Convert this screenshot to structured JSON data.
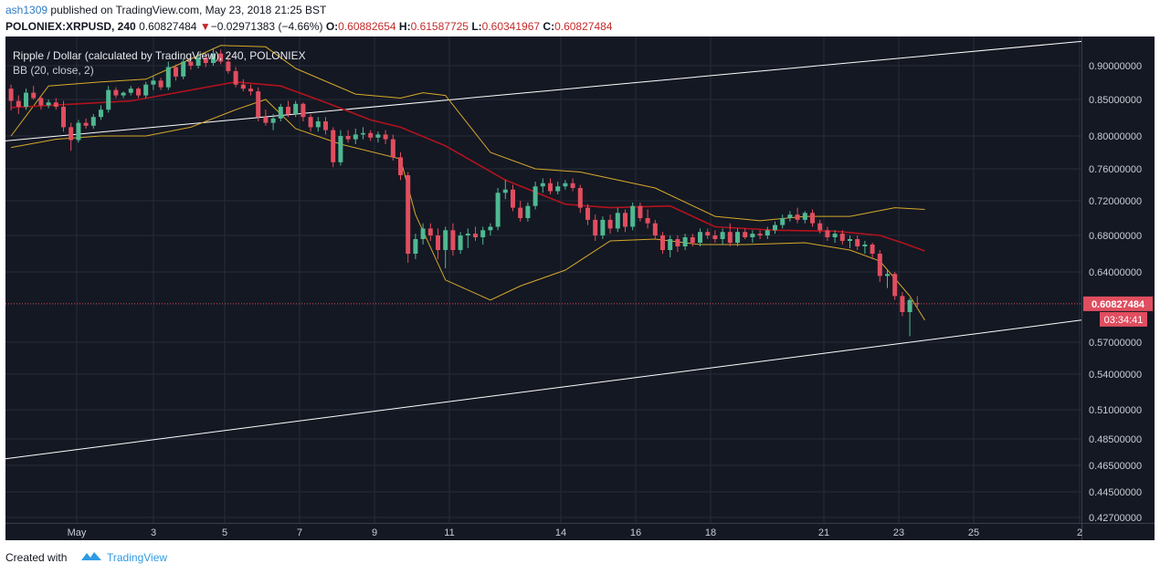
{
  "header": {
    "username": "ash1309",
    "published_text": "published on TradingView.com, May 23, 2018 21:25 BST",
    "symbol": "POLONIEX:XRPUSD, 240",
    "last": "0.60827484",
    "change_arrow": "▼",
    "change": "−0.02971383 (−4.66%)",
    "o_label": "O:",
    "o_value": "0.60882654",
    "h_label": "H:",
    "h_value": "0.61587725",
    "l_label": "L:",
    "l_value": "0.60341967",
    "c_label": "C:",
    "c_value": "0.60827484"
  },
  "legend": {
    "title": "Ripple / Dollar (calculated by TradingView), 240, POLONIEX",
    "indicator": "BB (20, close, 2)"
  },
  "footer": {
    "created_with": "Created with",
    "brand": "TradingView"
  },
  "colors": {
    "background": "#141823",
    "up": "#4fb892",
    "down": "#e04e5f",
    "basis": "#b1131d",
    "bands": "#d6a92a",
    "trendline": "#ffffff",
    "price_line": "#e04e5f"
  },
  "chart_data": {
    "type": "candlestick",
    "x_tick_labels": [
      "May",
      "3",
      "5",
      "7",
      "9",
      "11",
      "14",
      "16",
      "18",
      "21",
      "23",
      "25",
      "2"
    ],
    "y_tick_labels": [
      "0.90000000",
      "0.85000000",
      "0.80000000",
      "0.76000000",
      "0.72000000",
      "0.68000000",
      "0.64000000",
      "0.57000000",
      "0.54000000",
      "0.51000000",
      "0.48500000",
      "0.46500000",
      "0.44500000",
      "0.42700000"
    ],
    "price_label": "0.60827484",
    "countdown_label": "03:34:41",
    "last_price": 0.60827484,
    "candles": [
      {
        "o": 0.866,
        "h": 0.872,
        "l": 0.835,
        "c": 0.848
      },
      {
        "o": 0.848,
        "h": 0.856,
        "l": 0.83,
        "c": 0.84
      },
      {
        "o": 0.84,
        "h": 0.866,
        "l": 0.836,
        "c": 0.86
      },
      {
        "o": 0.86,
        "h": 0.87,
        "l": 0.85,
        "c": 0.852
      },
      {
        "o": 0.852,
        "h": 0.855,
        "l": 0.836,
        "c": 0.842
      },
      {
        "o": 0.842,
        "h": 0.85,
        "l": 0.838,
        "c": 0.846
      },
      {
        "o": 0.846,
        "h": 0.852,
        "l": 0.836,
        "c": 0.84
      },
      {
        "o": 0.84,
        "h": 0.848,
        "l": 0.806,
        "c": 0.812
      },
      {
        "o": 0.812,
        "h": 0.818,
        "l": 0.782,
        "c": 0.795
      },
      {
        "o": 0.795,
        "h": 0.822,
        "l": 0.792,
        "c": 0.818
      },
      {
        "o": 0.818,
        "h": 0.824,
        "l": 0.81,
        "c": 0.814
      },
      {
        "o": 0.814,
        "h": 0.83,
        "l": 0.81,
        "c": 0.826
      },
      {
        "o": 0.826,
        "h": 0.842,
        "l": 0.822,
        "c": 0.836
      },
      {
        "o": 0.836,
        "h": 0.87,
        "l": 0.832,
        "c": 0.864
      },
      {
        "o": 0.864,
        "h": 0.868,
        "l": 0.852,
        "c": 0.856
      },
      {
        "o": 0.856,
        "h": 0.862,
        "l": 0.852,
        "c": 0.86
      },
      {
        "o": 0.86,
        "h": 0.87,
        "l": 0.856,
        "c": 0.866
      },
      {
        "o": 0.866,
        "h": 0.868,
        "l": 0.852,
        "c": 0.856
      },
      {
        "o": 0.856,
        "h": 0.876,
        "l": 0.852,
        "c": 0.872
      },
      {
        "o": 0.872,
        "h": 0.884,
        "l": 0.864,
        "c": 0.878
      },
      {
        "o": 0.878,
        "h": 0.882,
        "l": 0.864,
        "c": 0.868
      },
      {
        "o": 0.868,
        "h": 0.906,
        "l": 0.864,
        "c": 0.898
      },
      {
        "o": 0.898,
        "h": 0.902,
        "l": 0.878,
        "c": 0.884
      },
      {
        "o": 0.884,
        "h": 0.912,
        "l": 0.88,
        "c": 0.906
      },
      {
        "o": 0.906,
        "h": 0.914,
        "l": 0.894,
        "c": 0.9
      },
      {
        "o": 0.9,
        "h": 0.918,
        "l": 0.896,
        "c": 0.912
      },
      {
        "o": 0.912,
        "h": 0.918,
        "l": 0.898,
        "c": 0.904
      },
      {
        "o": 0.904,
        "h": 0.926,
        "l": 0.9,
        "c": 0.918
      },
      {
        "o": 0.918,
        "h": 0.924,
        "l": 0.902,
        "c": 0.906
      },
      {
        "o": 0.906,
        "h": 0.916,
        "l": 0.888,
        "c": 0.892
      },
      {
        "o": 0.892,
        "h": 0.898,
        "l": 0.868,
        "c": 0.872
      },
      {
        "o": 0.872,
        "h": 0.88,
        "l": 0.862,
        "c": 0.866
      },
      {
        "o": 0.866,
        "h": 0.872,
        "l": 0.856,
        "c": 0.862
      },
      {
        "o": 0.862,
        "h": 0.868,
        "l": 0.82,
        "c": 0.826
      },
      {
        "o": 0.826,
        "h": 0.836,
        "l": 0.814,
        "c": 0.818
      },
      {
        "o": 0.818,
        "h": 0.83,
        "l": 0.808,
        "c": 0.824
      },
      {
        "o": 0.824,
        "h": 0.844,
        "l": 0.82,
        "c": 0.84
      },
      {
        "o": 0.84,
        "h": 0.848,
        "l": 0.826,
        "c": 0.83
      },
      {
        "o": 0.83,
        "h": 0.848,
        "l": 0.826,
        "c": 0.844
      },
      {
        "o": 0.844,
        "h": 0.846,
        "l": 0.82,
        "c": 0.826
      },
      {
        "o": 0.826,
        "h": 0.83,
        "l": 0.806,
        "c": 0.812
      },
      {
        "o": 0.812,
        "h": 0.826,
        "l": 0.806,
        "c": 0.82
      },
      {
        "o": 0.82,
        "h": 0.826,
        "l": 0.802,
        "c": 0.808
      },
      {
        "o": 0.808,
        "h": 0.812,
        "l": 0.762,
        "c": 0.768
      },
      {
        "o": 0.768,
        "h": 0.808,
        "l": 0.764,
        "c": 0.8
      },
      {
        "o": 0.8,
        "h": 0.808,
        "l": 0.792,
        "c": 0.796
      },
      {
        "o": 0.796,
        "h": 0.81,
        "l": 0.79,
        "c": 0.802
      },
      {
        "o": 0.802,
        "h": 0.812,
        "l": 0.796,
        "c": 0.804
      },
      {
        "o": 0.804,
        "h": 0.808,
        "l": 0.794,
        "c": 0.798
      },
      {
        "o": 0.798,
        "h": 0.806,
        "l": 0.792,
        "c": 0.802
      },
      {
        "o": 0.802,
        "h": 0.808,
        "l": 0.79,
        "c": 0.796
      },
      {
        "o": 0.796,
        "h": 0.802,
        "l": 0.77,
        "c": 0.774
      },
      {
        "o": 0.774,
        "h": 0.78,
        "l": 0.746,
        "c": 0.752
      },
      {
        "o": 0.752,
        "h": 0.756,
        "l": 0.65,
        "c": 0.66
      },
      {
        "o": 0.66,
        "h": 0.682,
        "l": 0.654,
        "c": 0.676
      },
      {
        "o": 0.676,
        "h": 0.694,
        "l": 0.67,
        "c": 0.688
      },
      {
        "o": 0.688,
        "h": 0.694,
        "l": 0.674,
        "c": 0.68
      },
      {
        "o": 0.68,
        "h": 0.688,
        "l": 0.654,
        "c": 0.664
      },
      {
        "o": 0.664,
        "h": 0.69,
        "l": 0.644,
        "c": 0.686
      },
      {
        "o": 0.686,
        "h": 0.694,
        "l": 0.658,
        "c": 0.664
      },
      {
        "o": 0.664,
        "h": 0.684,
        "l": 0.66,
        "c": 0.68
      },
      {
        "o": 0.68,
        "h": 0.688,
        "l": 0.666,
        "c": 0.682
      },
      {
        "o": 0.682,
        "h": 0.69,
        "l": 0.674,
        "c": 0.678
      },
      {
        "o": 0.678,
        "h": 0.69,
        "l": 0.67,
        "c": 0.686
      },
      {
        "o": 0.686,
        "h": 0.694,
        "l": 0.68,
        "c": 0.69
      },
      {
        "o": 0.69,
        "h": 0.736,
        "l": 0.686,
        "c": 0.73
      },
      {
        "o": 0.73,
        "h": 0.746,
        "l": 0.722,
        "c": 0.734
      },
      {
        "o": 0.734,
        "h": 0.74,
        "l": 0.708,
        "c": 0.712
      },
      {
        "o": 0.712,
        "h": 0.72,
        "l": 0.696,
        "c": 0.7
      },
      {
        "o": 0.7,
        "h": 0.718,
        "l": 0.696,
        "c": 0.714
      },
      {
        "o": 0.714,
        "h": 0.744,
        "l": 0.71,
        "c": 0.738
      },
      {
        "o": 0.738,
        "h": 0.748,
        "l": 0.73,
        "c": 0.742
      },
      {
        "o": 0.742,
        "h": 0.748,
        "l": 0.728,
        "c": 0.732
      },
      {
        "o": 0.732,
        "h": 0.744,
        "l": 0.728,
        "c": 0.738
      },
      {
        "o": 0.738,
        "h": 0.746,
        "l": 0.734,
        "c": 0.742
      },
      {
        "o": 0.742,
        "h": 0.748,
        "l": 0.732,
        "c": 0.736
      },
      {
        "o": 0.736,
        "h": 0.74,
        "l": 0.706,
        "c": 0.712
      },
      {
        "o": 0.712,
        "h": 0.716,
        "l": 0.692,
        "c": 0.698
      },
      {
        "o": 0.698,
        "h": 0.704,
        "l": 0.674,
        "c": 0.68
      },
      {
        "o": 0.68,
        "h": 0.702,
        "l": 0.676,
        "c": 0.698
      },
      {
        "o": 0.698,
        "h": 0.704,
        "l": 0.682,
        "c": 0.688
      },
      {
        "o": 0.688,
        "h": 0.712,
        "l": 0.684,
        "c": 0.706
      },
      {
        "o": 0.706,
        "h": 0.71,
        "l": 0.684,
        "c": 0.69
      },
      {
        "o": 0.69,
        "h": 0.718,
        "l": 0.686,
        "c": 0.714
      },
      {
        "o": 0.714,
        "h": 0.718,
        "l": 0.696,
        "c": 0.7
      },
      {
        "o": 0.7,
        "h": 0.71,
        "l": 0.688,
        "c": 0.694
      },
      {
        "o": 0.694,
        "h": 0.698,
        "l": 0.676,
        "c": 0.68
      },
      {
        "o": 0.68,
        "h": 0.684,
        "l": 0.66,
        "c": 0.664
      },
      {
        "o": 0.664,
        "h": 0.68,
        "l": 0.656,
        "c": 0.676
      },
      {
        "o": 0.676,
        "h": 0.68,
        "l": 0.662,
        "c": 0.668
      },
      {
        "o": 0.668,
        "h": 0.682,
        "l": 0.664,
        "c": 0.678
      },
      {
        "o": 0.678,
        "h": 0.682,
        "l": 0.668,
        "c": 0.672
      },
      {
        "o": 0.672,
        "h": 0.688,
        "l": 0.668,
        "c": 0.684
      },
      {
        "o": 0.684,
        "h": 0.688,
        "l": 0.676,
        "c": 0.68
      },
      {
        "o": 0.68,
        "h": 0.686,
        "l": 0.672,
        "c": 0.676
      },
      {
        "o": 0.676,
        "h": 0.688,
        "l": 0.67,
        "c": 0.684
      },
      {
        "o": 0.684,
        "h": 0.694,
        "l": 0.668,
        "c": 0.672
      },
      {
        "o": 0.672,
        "h": 0.688,
        "l": 0.668,
        "c": 0.684
      },
      {
        "o": 0.684,
        "h": 0.688,
        "l": 0.676,
        "c": 0.678
      },
      {
        "o": 0.678,
        "h": 0.686,
        "l": 0.672,
        "c": 0.682
      },
      {
        "o": 0.682,
        "h": 0.686,
        "l": 0.676,
        "c": 0.68
      },
      {
        "o": 0.68,
        "h": 0.69,
        "l": 0.676,
        "c": 0.686
      },
      {
        "o": 0.686,
        "h": 0.696,
        "l": 0.682,
        "c": 0.692
      },
      {
        "o": 0.692,
        "h": 0.704,
        "l": 0.688,
        "c": 0.7
      },
      {
        "o": 0.7,
        "h": 0.708,
        "l": 0.696,
        "c": 0.704
      },
      {
        "o": 0.704,
        "h": 0.712,
        "l": 0.694,
        "c": 0.698
      },
      {
        "o": 0.698,
        "h": 0.708,
        "l": 0.694,
        "c": 0.706
      },
      {
        "o": 0.706,
        "h": 0.71,
        "l": 0.69,
        "c": 0.694
      },
      {
        "o": 0.694,
        "h": 0.698,
        "l": 0.682,
        "c": 0.686
      },
      {
        "o": 0.686,
        "h": 0.69,
        "l": 0.674,
        "c": 0.678
      },
      {
        "o": 0.678,
        "h": 0.686,
        "l": 0.672,
        "c": 0.682
      },
      {
        "o": 0.682,
        "h": 0.686,
        "l": 0.67,
        "c": 0.674
      },
      {
        "o": 0.674,
        "h": 0.68,
        "l": 0.666,
        "c": 0.676
      },
      {
        "o": 0.676,
        "h": 0.68,
        "l": 0.664,
        "c": 0.668
      },
      {
        "o": 0.668,
        "h": 0.674,
        "l": 0.66,
        "c": 0.67
      },
      {
        "o": 0.67,
        "h": 0.672,
        "l": 0.654,
        "c": 0.66
      },
      {
        "o": 0.66,
        "h": 0.664,
        "l": 0.63,
        "c": 0.636
      },
      {
        "o": 0.636,
        "h": 0.642,
        "l": 0.624,
        "c": 0.638
      },
      {
        "o": 0.638,
        "h": 0.64,
        "l": 0.612,
        "c": 0.616
      },
      {
        "o": 0.616,
        "h": 0.62,
        "l": 0.596,
        "c": 0.6
      },
      {
        "o": 0.6,
        "h": 0.614,
        "l": 0.576,
        "c": 0.612
      },
      {
        "o": 0.6088,
        "h": 0.6159,
        "l": 0.6034,
        "c": 0.6083
      }
    ],
    "bb_basis": [
      [
        0,
        0.839
      ],
      [
        16,
        0.848
      ],
      [
        30,
        0.876
      ],
      [
        36,
        0.87
      ],
      [
        42,
        0.846
      ],
      [
        48,
        0.822
      ],
      [
        52,
        0.812
      ],
      [
        58,
        0.788
      ],
      [
        66,
        0.746
      ],
      [
        74,
        0.716
      ],
      [
        80,
        0.712
      ],
      [
        88,
        0.714
      ],
      [
        94,
        0.69
      ],
      [
        102,
        0.686
      ],
      [
        110,
        0.685
      ],
      [
        116,
        0.68
      ],
      [
        119,
        0.672
      ],
      [
        122,
        0.663
      ]
    ],
    "bb_upper": [
      [
        0,
        0.8
      ],
      [
        5,
        0.87
      ],
      [
        12,
        0.876
      ],
      [
        18,
        0.88
      ],
      [
        22,
        0.9
      ],
      [
        28,
        0.93
      ],
      [
        34,
        0.928
      ],
      [
        38,
        0.896
      ],
      [
        46,
        0.858
      ],
      [
        52,
        0.852
      ],
      [
        55,
        0.86
      ],
      [
        58,
        0.856
      ],
      [
        64,
        0.78
      ],
      [
        70,
        0.76
      ],
      [
        76,
        0.756
      ],
      [
        80,
        0.748
      ],
      [
        86,
        0.736
      ],
      [
        94,
        0.702
      ],
      [
        100,
        0.697
      ],
      [
        106,
        0.702
      ],
      [
        112,
        0.702
      ],
      [
        118,
        0.712
      ],
      [
        122,
        0.71
      ]
    ],
    "bb_lower": [
      [
        0,
        0.786
      ],
      [
        6,
        0.796
      ],
      [
        12,
        0.8
      ],
      [
        18,
        0.8
      ],
      [
        24,
        0.812
      ],
      [
        30,
        0.836
      ],
      [
        34,
        0.85
      ],
      [
        38,
        0.81
      ],
      [
        44,
        0.79
      ],
      [
        52,
        0.772
      ],
      [
        54,
        0.704
      ],
      [
        58,
        0.632
      ],
      [
        64,
        0.612
      ],
      [
        68,
        0.626
      ],
      [
        74,
        0.642
      ],
      [
        80,
        0.674
      ],
      [
        86,
        0.676
      ],
      [
        92,
        0.67
      ],
      [
        98,
        0.67
      ],
      [
        106,
        0.672
      ],
      [
        112,
        0.664
      ],
      [
        116,
        0.652
      ],
      [
        120,
        0.616
      ],
      [
        122,
        0.592
      ]
    ],
    "trendline_upper": {
      "start": {
        "x": 0,
        "y": 0.794
      },
      "end": {
        "x": 1.0,
        "y": 0.936
      }
    },
    "trendline_lower": {
      "start": {
        "x": 0,
        "y": 0.47
      },
      "end": {
        "x": 1.0,
        "y": 0.592
      }
    }
  }
}
